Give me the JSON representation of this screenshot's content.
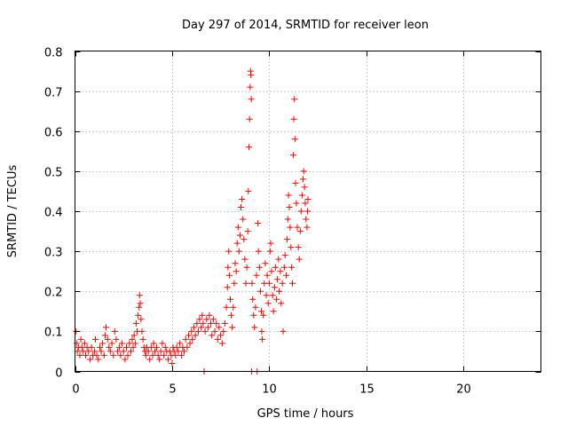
{
  "colors": {
    "series": "#ff0000",
    "axis": "#000000",
    "grid": "#a0a0a0",
    "background": "#ffffff"
  },
  "chart_data": {
    "type": "scatter",
    "title": "Day 297 of 2014, SRMTID for receiver leon",
    "xlabel": "GPS time / hours",
    "ylabel": "SRMTID / TECUs",
    "xlim": [
      0,
      24
    ],
    "ylim": [
      0,
      0.8
    ],
    "xticks": [
      0,
      5,
      10,
      15,
      20
    ],
    "yticks": [
      0,
      0.1,
      0.2,
      0.3,
      0.4,
      0.5,
      0.6,
      0.7,
      0.8
    ],
    "xtick_labels": [
      "0",
      "5",
      "10",
      "15",
      "20"
    ],
    "ytick_labels": [
      "0",
      "0.1",
      "0.2",
      "0.3",
      "0.4",
      "0.5",
      "0.6",
      "0.7",
      "0.8"
    ],
    "grid": true,
    "marker": "plus",
    "series": [
      {
        "name": "SRMTID",
        "points": [
          [
            0.05,
            0.1
          ],
          [
            0.08,
            0.07
          ],
          [
            0.12,
            0.05
          ],
          [
            0.18,
            0.06
          ],
          [
            0.25,
            0.04
          ],
          [
            0.3,
            0.08
          ],
          [
            0.35,
            0.06
          ],
          [
            0.42,
            0.05
          ],
          [
            0.5,
            0.07
          ],
          [
            0.55,
            0.04
          ],
          [
            0.62,
            0.06
          ],
          [
            0.7,
            0.05
          ],
          [
            0.78,
            0.03
          ],
          [
            0.85,
            0.06
          ],
          [
            0.92,
            0.04
          ],
          [
            1.0,
            0.05
          ],
          [
            1.05,
            0.08
          ],
          [
            1.12,
            0.04
          ],
          [
            1.2,
            0.03
          ],
          [
            1.28,
            0.06
          ],
          [
            1.35,
            0.05
          ],
          [
            1.42,
            0.07
          ],
          [
            1.5,
            0.04
          ],
          [
            1.55,
            0.09
          ],
          [
            1.6,
            0.11
          ],
          [
            1.68,
            0.08
          ],
          [
            1.75,
            0.06
          ],
          [
            1.82,
            0.05
          ],
          [
            1.9,
            0.07
          ],
          [
            1.98,
            0.04
          ],
          [
            2.05,
            0.1
          ],
          [
            2.12,
            0.08
          ],
          [
            2.2,
            0.05
          ],
          [
            2.28,
            0.06
          ],
          [
            2.35,
            0.04
          ],
          [
            2.42,
            0.07
          ],
          [
            2.5,
            0.05
          ],
          [
            2.58,
            0.03
          ],
          [
            2.65,
            0.06
          ],
          [
            2.72,
            0.04
          ],
          [
            2.8,
            0.07
          ],
          [
            2.88,
            0.05
          ],
          [
            2.95,
            0.08
          ],
          [
            3.0,
            0.06
          ],
          [
            3.05,
            0.09
          ],
          [
            3.1,
            0.07
          ],
          [
            3.15,
            0.12
          ],
          [
            3.2,
            0.1
          ],
          [
            3.25,
            0.14
          ],
          [
            3.3,
            0.16
          ],
          [
            3.33,
            0.19
          ],
          [
            3.36,
            0.17
          ],
          [
            3.4,
            0.13
          ],
          [
            3.45,
            0.1
          ],
          [
            3.5,
            0.08
          ],
          [
            3.55,
            0.06
          ],
          [
            3.6,
            0.05
          ],
          [
            3.65,
            0.04
          ],
          [
            3.7,
            0.06
          ],
          [
            3.78,
            0.05
          ],
          [
            3.85,
            0.03
          ],
          [
            3.92,
            0.06
          ],
          [
            4.0,
            0.04
          ],
          [
            4.05,
            0.07
          ],
          [
            4.12,
            0.05
          ],
          [
            4.2,
            0.06
          ],
          [
            4.28,
            0.04
          ],
          [
            4.35,
            0.03
          ],
          [
            4.42,
            0.05
          ],
          [
            4.5,
            0.07
          ],
          [
            4.58,
            0.04
          ],
          [
            4.65,
            0.06
          ],
          [
            4.72,
            0.05
          ],
          [
            4.8,
            0.03
          ],
          [
            4.88,
            0.05
          ],
          [
            4.95,
            0.04
          ],
          [
            5.0,
            0.02
          ],
          [
            5.05,
            0.06
          ],
          [
            5.1,
            0.05
          ],
          [
            5.18,
            0.04
          ],
          [
            5.25,
            0.06
          ],
          [
            5.32,
            0.05
          ],
          [
            5.4,
            0.07
          ],
          [
            5.48,
            0.04
          ],
          [
            5.55,
            0.06
          ],
          [
            5.62,
            0.05
          ],
          [
            5.7,
            0.08
          ],
          [
            5.78,
            0.06
          ],
          [
            5.85,
            0.09
          ],
          [
            5.92,
            0.07
          ],
          [
            6.0,
            0.1
          ],
          [
            6.05,
            0.08
          ],
          [
            6.12,
            0.11
          ],
          [
            6.2,
            0.09
          ],
          [
            6.28,
            0.12
          ],
          [
            6.35,
            0.1
          ],
          [
            6.42,
            0.13
          ],
          [
            6.5,
            0.11
          ],
          [
            6.55,
            0.14
          ],
          [
            6.6,
            0.12
          ],
          [
            6.65,
            0.0
          ],
          [
            6.7,
            0.1
          ],
          [
            6.78,
            0.13
          ],
          [
            6.85,
            0.11
          ],
          [
            6.92,
            0.14
          ],
          [
            7.0,
            0.12
          ],
          [
            7.05,
            0.09
          ],
          [
            7.12,
            0.13
          ],
          [
            7.2,
            0.1
          ],
          [
            7.28,
            0.12
          ],
          [
            7.35,
            0.08
          ],
          [
            7.42,
            0.11
          ],
          [
            7.5,
            0.09
          ],
          [
            7.58,
            0.07
          ],
          [
            7.65,
            0.1
          ],
          [
            7.72,
            0.12
          ],
          [
            7.8,
            0.16
          ],
          [
            7.85,
            0.21
          ],
          [
            7.88,
            0.26
          ],
          [
            7.92,
            0.3
          ],
          [
            7.95,
            0.24
          ],
          [
            8.0,
            0.18
          ],
          [
            8.05,
            0.14
          ],
          [
            8.1,
            0.11
          ],
          [
            8.15,
            0.16
          ],
          [
            8.2,
            0.22
          ],
          [
            8.25,
            0.27
          ],
          [
            8.3,
            0.25
          ],
          [
            8.35,
            0.32
          ],
          [
            8.4,
            0.36
          ],
          [
            8.45,
            0.3
          ],
          [
            8.5,
            0.34
          ],
          [
            8.55,
            0.41
          ],
          [
            8.6,
            0.43
          ],
          [
            8.65,
            0.38
          ],
          [
            8.7,
            0.33
          ],
          [
            8.75,
            0.28
          ],
          [
            8.8,
            0.22
          ],
          [
            8.85,
            0.26
          ],
          [
            8.9,
            0.35
          ],
          [
            8.93,
            0.45
          ],
          [
            8.96,
            0.56
          ],
          [
            8.99,
            0.63
          ],
          [
            9.02,
            0.71
          ],
          [
            9.04,
            0.75
          ],
          [
            9.06,
            0.74
          ],
          [
            9.08,
            0.68
          ],
          [
            9.1,
            0.0
          ],
          [
            9.12,
            0.22
          ],
          [
            9.15,
            0.18
          ],
          [
            9.2,
            0.14
          ],
          [
            9.25,
            0.11
          ],
          [
            9.3,
            0.16
          ],
          [
            9.35,
            0.24
          ],
          [
            9.38,
            0.0
          ],
          [
            9.42,
            0.37
          ],
          [
            9.45,
            0.3
          ],
          [
            9.5,
            0.26
          ],
          [
            9.55,
            0.2
          ],
          [
            9.6,
            0.15
          ],
          [
            9.62,
            0.1
          ],
          [
            9.65,
            0.08
          ],
          [
            9.7,
            0.14
          ],
          [
            9.75,
            0.22
          ],
          [
            9.8,
            0.27
          ],
          [
            9.85,
            0.19
          ],
          [
            9.9,
            0.24
          ],
          [
            9.95,
            0.17
          ],
          [
            10.0,
            0.22
          ],
          [
            10.05,
            0.3
          ],
          [
            10.08,
            0.32
          ],
          [
            10.12,
            0.25
          ],
          [
            10.18,
            0.19
          ],
          [
            10.22,
            0.15
          ],
          [
            10.28,
            0.21
          ],
          [
            10.32,
            0.26
          ],
          [
            10.38,
            0.18
          ],
          [
            10.42,
            0.23
          ],
          [
            10.48,
            0.28
          ],
          [
            10.52,
            0.2
          ],
          [
            10.58,
            0.25
          ],
          [
            10.62,
            0.17
          ],
          [
            10.68,
            0.22
          ],
          [
            10.72,
            0.1
          ],
          [
            10.78,
            0.26
          ],
          [
            10.82,
            0.29
          ],
          [
            10.88,
            0.24
          ],
          [
            10.92,
            0.33
          ],
          [
            10.96,
            0.38
          ],
          [
            11.0,
            0.44
          ],
          [
            11.04,
            0.41
          ],
          [
            11.08,
            0.36
          ],
          [
            11.12,
            0.31
          ],
          [
            11.16,
            0.26
          ],
          [
            11.2,
            0.22
          ],
          [
            11.24,
            0.54
          ],
          [
            11.27,
            0.63
          ],
          [
            11.3,
            0.68
          ],
          [
            11.33,
            0.58
          ],
          [
            11.36,
            0.47
          ],
          [
            11.4,
            0.42
          ],
          [
            11.45,
            0.36
          ],
          [
            11.5,
            0.31
          ],
          [
            11.55,
            0.28
          ],
          [
            11.6,
            0.35
          ],
          [
            11.65,
            0.4
          ],
          [
            11.7,
            0.44
          ],
          [
            11.75,
            0.48
          ],
          [
            11.78,
            0.5
          ],
          [
            11.82,
            0.46
          ],
          [
            11.86,
            0.42
          ],
          [
            11.9,
            0.38
          ],
          [
            11.95,
            0.36
          ],
          [
            11.98,
            0.4
          ],
          [
            12.0,
            0.43
          ]
        ]
      }
    ]
  }
}
